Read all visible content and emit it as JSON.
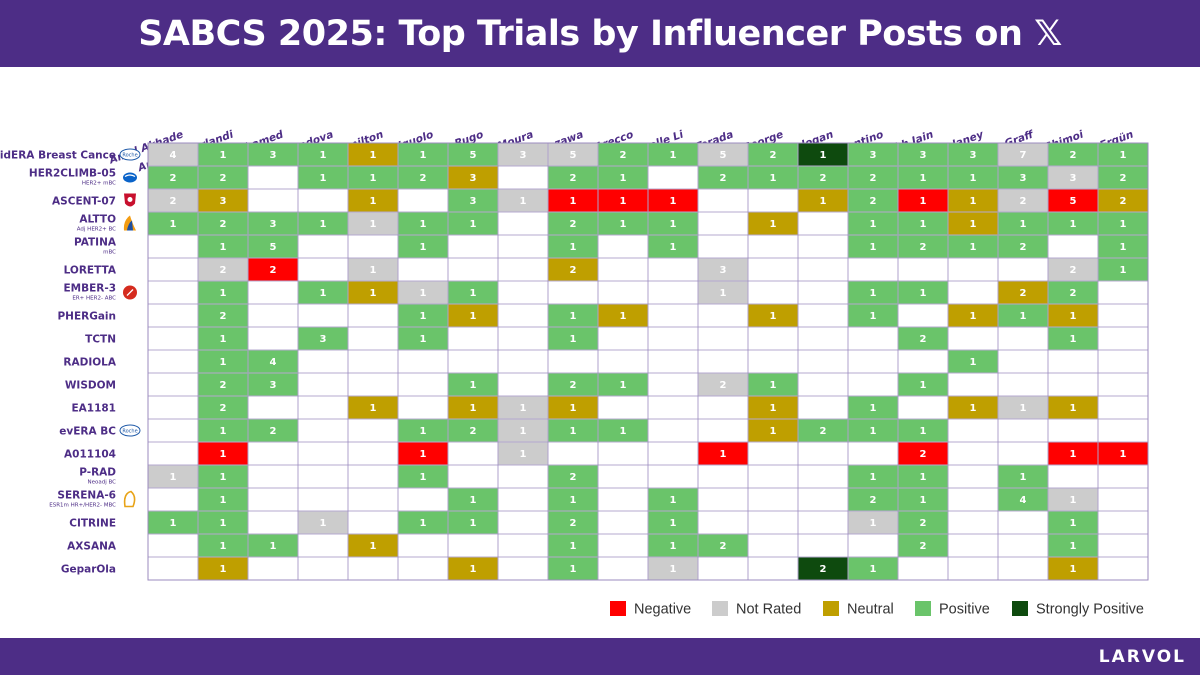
{
  "header": {
    "title": "SABCS 2025: Top Trials by Influencer Posts on 𝕏"
  },
  "footer": {
    "brand": "LARVOL"
  },
  "colors": {
    "Negative": "#ff0000",
    "Not Rated": "#cccccc",
    "Neutral": "#bf9f00",
    "Positive": "#6ac46a",
    "Strongly Positive": "#0e4a0e",
    "brand": "#4d2d86"
  },
  "chart_data": {
    "type": "heatmap",
    "title": "SABCS 2025: Top Trials by Influencer Posts on 𝕏",
    "columns": [
      "Amol Akhade",
      "Armando Orlandi",
      "Aya Mohamed",
      "Elvina Almuradova",
      "Erika Hamilton",
      "Gaia Griguolo",
      "Hope Rugo",
      "Jose Fernando Moura",
      "Kazuki Nozawa",
      "Luca Arecco",
      "Michelle Li",
      "Mitsuo Terada",
      "Mridula George",
      "Mustafa Ozdogan",
      "Paolo Tarantino",
      "Rishabh Jain",
      "Sara Tolaney",
      "Stephanie Graff",
      "Tatsunori Shimoi",
      "Yakup Ergün"
    ],
    "legend": [
      "Negative",
      "Not Rated",
      "Neutral",
      "Positive",
      "Strongly Positive"
    ],
    "legend_position": "bottom-right",
    "cell_key": {
      "N": "Negative",
      "R": "Not Rated",
      "U": "Neutral",
      "P": "Positive",
      "S": "Strongly Positive"
    },
    "rows": [
      {
        "name": "lidERA Breast Cance",
        "subtitle": "",
        "logo": "roche-logo",
        "cells": [
          [
            "R",
            4
          ],
          [
            "P",
            1
          ],
          [
            "P",
            3
          ],
          [
            "P",
            1
          ],
          [
            "U",
            1
          ],
          [
            "P",
            1
          ],
          [
            "P",
            5
          ],
          [
            "R",
            3
          ],
          [
            "R",
            5
          ],
          [
            "P",
            2
          ],
          [
            "P",
            1
          ],
          [
            "R",
            5
          ],
          [
            "P",
            2
          ],
          [
            "S",
            1
          ],
          [
            "P",
            3
          ],
          [
            "P",
            3
          ],
          [
            "P",
            3
          ],
          [
            "R",
            7
          ],
          [
            "P",
            2
          ],
          [
            "P",
            1
          ]
        ]
      },
      {
        "name": "HER2CLIMB-05",
        "subtitle": "HER2+ mBC",
        "logo": "pfizer-logo",
        "cells": [
          [
            "P",
            2
          ],
          [
            "P",
            2
          ],
          null,
          [
            "P",
            1
          ],
          [
            "P",
            1
          ],
          [
            "P",
            2
          ],
          [
            "U",
            3
          ],
          null,
          [
            "P",
            2
          ],
          [
            "P",
            1
          ],
          null,
          [
            "P",
            2
          ],
          [
            "P",
            1
          ],
          [
            "P",
            2
          ],
          [
            "P",
            2
          ],
          [
            "P",
            1
          ],
          [
            "P",
            1
          ],
          [
            "P",
            3
          ],
          [
            "R",
            3
          ],
          [
            "P",
            2
          ]
        ]
      },
      {
        "name": "ASCENT-07",
        "subtitle": "",
        "logo": "gilead-logo",
        "cells": [
          [
            "R",
            2
          ],
          [
            "U",
            3
          ],
          null,
          null,
          [
            "U",
            1
          ],
          null,
          [
            "P",
            3
          ],
          [
            "R",
            1
          ],
          [
            "N",
            1
          ],
          [
            "N",
            1
          ],
          [
            "N",
            1
          ],
          null,
          null,
          [
            "U",
            1
          ],
          [
            "P",
            2
          ],
          [
            "N",
            1
          ],
          [
            "U",
            1
          ],
          [
            "R",
            2
          ],
          [
            "N",
            5
          ],
          [
            "U",
            2
          ]
        ]
      },
      {
        "name": "ALTTO",
        "subtitle": "Adj HER2+ BC",
        "logo": "novartis-logo",
        "cells": [
          [
            "P",
            1
          ],
          [
            "P",
            2
          ],
          [
            "P",
            3
          ],
          [
            "P",
            1
          ],
          [
            "R",
            1
          ],
          [
            "P",
            1
          ],
          [
            "P",
            1
          ],
          null,
          [
            "P",
            2
          ],
          [
            "P",
            1
          ],
          [
            "P",
            1
          ],
          null,
          [
            "U",
            1
          ],
          null,
          [
            "P",
            1
          ],
          [
            "P",
            1
          ],
          [
            "U",
            1
          ],
          [
            "P",
            1
          ],
          [
            "P",
            1
          ],
          [
            "P",
            1
          ]
        ]
      },
      {
        "name": "PATINA",
        "subtitle": "mBC",
        "logo": "",
        "cells": [
          null,
          [
            "P",
            1
          ],
          [
            "P",
            5
          ],
          null,
          null,
          [
            "P",
            1
          ],
          null,
          null,
          [
            "P",
            1
          ],
          null,
          [
            "P",
            1
          ],
          null,
          null,
          null,
          [
            "P",
            1
          ],
          [
            "P",
            2
          ],
          [
            "P",
            1
          ],
          [
            "P",
            2
          ],
          null,
          [
            "P",
            1
          ]
        ]
      },
      {
        "name": "LORETTA",
        "subtitle": "",
        "logo": "",
        "cells": [
          null,
          [
            "R",
            2
          ],
          [
            "N",
            2
          ],
          null,
          [
            "R",
            1
          ],
          null,
          null,
          null,
          [
            "U",
            2
          ],
          null,
          null,
          [
            "R",
            3
          ],
          null,
          null,
          null,
          null,
          null,
          null,
          [
            "R",
            2
          ],
          [
            "P",
            1
          ]
        ]
      },
      {
        "name": "EMBER-3",
        "subtitle": "ER+ HER2- ABC",
        "logo": "lilly-logo",
        "cells": [
          null,
          [
            "P",
            1
          ],
          null,
          [
            "P",
            1
          ],
          [
            "U",
            1
          ],
          [
            "R",
            1
          ],
          [
            "P",
            1
          ],
          null,
          null,
          null,
          null,
          [
            "R",
            1
          ],
          null,
          null,
          [
            "P",
            1
          ],
          [
            "P",
            1
          ],
          null,
          [
            "U",
            2
          ],
          [
            "P",
            2
          ],
          null
        ]
      },
      {
        "name": "PHERGain",
        "subtitle": "",
        "logo": "",
        "cells": [
          null,
          [
            "P",
            2
          ],
          null,
          null,
          null,
          [
            "P",
            1
          ],
          [
            "U",
            1
          ],
          null,
          [
            "P",
            1
          ],
          [
            "U",
            1
          ],
          null,
          null,
          [
            "U",
            1
          ],
          null,
          [
            "P",
            1
          ],
          null,
          [
            "U",
            1
          ],
          [
            "P",
            1
          ],
          [
            "U",
            1
          ],
          null
        ]
      },
      {
        "name": "TCTN",
        "subtitle": "",
        "logo": "",
        "cells": [
          null,
          [
            "P",
            1
          ],
          null,
          [
            "P",
            3
          ],
          null,
          [
            "P",
            1
          ],
          null,
          null,
          [
            "P",
            1
          ],
          null,
          null,
          null,
          null,
          null,
          null,
          [
            "P",
            2
          ],
          null,
          null,
          [
            "P",
            1
          ],
          null
        ]
      },
      {
        "name": "RADIOLA",
        "subtitle": "",
        "logo": "",
        "cells": [
          null,
          [
            "P",
            1
          ],
          [
            "P",
            4
          ],
          null,
          null,
          null,
          null,
          null,
          null,
          null,
          null,
          null,
          null,
          null,
          null,
          null,
          [
            "P",
            1
          ],
          null,
          null,
          null
        ]
      },
      {
        "name": "WISDOM",
        "subtitle": "",
        "logo": "",
        "cells": [
          null,
          [
            "P",
            2
          ],
          [
            "P",
            3
          ],
          null,
          null,
          null,
          [
            "P",
            1
          ],
          null,
          [
            "P",
            2
          ],
          [
            "P",
            1
          ],
          null,
          [
            "R",
            2
          ],
          [
            "P",
            1
          ],
          null,
          null,
          [
            "P",
            1
          ],
          null,
          null,
          null,
          null
        ]
      },
      {
        "name": "EA1181",
        "subtitle": "",
        "logo": "",
        "cells": [
          null,
          [
            "P",
            2
          ],
          null,
          null,
          [
            "U",
            1
          ],
          null,
          [
            "U",
            1
          ],
          [
            "R",
            1
          ],
          [
            "U",
            1
          ],
          null,
          null,
          null,
          [
            "U",
            1
          ],
          null,
          [
            "P",
            1
          ],
          null,
          [
            "U",
            1
          ],
          [
            "R",
            1
          ],
          [
            "U",
            1
          ],
          null
        ]
      },
      {
        "name": "evERA BC",
        "subtitle": "",
        "logo": "roche-logo",
        "cells": [
          null,
          [
            "P",
            1
          ],
          [
            "P",
            2
          ],
          null,
          null,
          [
            "P",
            1
          ],
          [
            "P",
            2
          ],
          [
            "R",
            1
          ],
          [
            "P",
            1
          ],
          [
            "P",
            1
          ],
          null,
          null,
          [
            "U",
            1
          ],
          [
            "P",
            2
          ],
          [
            "P",
            1
          ],
          [
            "P",
            1
          ],
          null,
          null,
          null,
          null
        ]
      },
      {
        "name": "A011104",
        "subtitle": "",
        "logo": "",
        "cells": [
          null,
          [
            "N",
            1
          ],
          null,
          null,
          null,
          [
            "N",
            1
          ],
          null,
          [
            "R",
            1
          ],
          null,
          null,
          null,
          [
            "N",
            1
          ],
          null,
          null,
          null,
          [
            "N",
            2
          ],
          null,
          null,
          [
            "N",
            1
          ],
          [
            "N",
            1
          ]
        ]
      },
      {
        "name": "P-RAD",
        "subtitle": "Neoadj BC",
        "logo": "",
        "cells": [
          [
            "R",
            1
          ],
          [
            "P",
            1
          ],
          null,
          null,
          null,
          [
            "P",
            1
          ],
          null,
          null,
          [
            "P",
            2
          ],
          null,
          null,
          null,
          null,
          null,
          [
            "P",
            1
          ],
          [
            "P",
            1
          ],
          null,
          [
            "P",
            1
          ],
          null,
          null
        ]
      },
      {
        "name": "SERENA-6",
        "subtitle": "ESR1m HR+/HER2- MBC",
        "logo": "astrazeneca-logo",
        "cells": [
          null,
          [
            "P",
            1
          ],
          null,
          null,
          null,
          null,
          [
            "P",
            1
          ],
          null,
          [
            "P",
            1
          ],
          null,
          [
            "P",
            1
          ],
          null,
          null,
          null,
          [
            "P",
            2
          ],
          [
            "P",
            1
          ],
          null,
          [
            "P",
            4
          ],
          [
            "R",
            1
          ],
          null
        ]
      },
      {
        "name": "CITRINE",
        "subtitle": "",
        "logo": "",
        "cells": [
          [
            "P",
            1
          ],
          [
            "P",
            1
          ],
          null,
          [
            "R",
            1
          ],
          null,
          [
            "P",
            1
          ],
          [
            "P",
            1
          ],
          null,
          [
            "P",
            2
          ],
          null,
          [
            "P",
            1
          ],
          null,
          null,
          null,
          [
            "R",
            1
          ],
          [
            "P",
            2
          ],
          null,
          null,
          [
            "P",
            1
          ],
          null
        ]
      },
      {
        "name": "AXSANA",
        "subtitle": "",
        "logo": "",
        "cells": [
          null,
          [
            "P",
            1
          ],
          [
            "P",
            1
          ],
          null,
          [
            "U",
            1
          ],
          null,
          null,
          null,
          [
            "P",
            1
          ],
          null,
          [
            "P",
            1
          ],
          [
            "P",
            2
          ],
          null,
          null,
          null,
          [
            "P",
            2
          ],
          null,
          null,
          [
            "P",
            1
          ],
          null
        ]
      },
      {
        "name": "GeparOla",
        "subtitle": "",
        "logo": "",
        "cells": [
          null,
          [
            "U",
            1
          ],
          null,
          null,
          null,
          null,
          [
            "U",
            1
          ],
          null,
          [
            "P",
            1
          ],
          null,
          [
            "R",
            1
          ],
          null,
          null,
          [
            "S",
            2
          ],
          [
            "P",
            1
          ],
          null,
          null,
          null,
          [
            "U",
            1
          ],
          null
        ]
      }
    ]
  }
}
